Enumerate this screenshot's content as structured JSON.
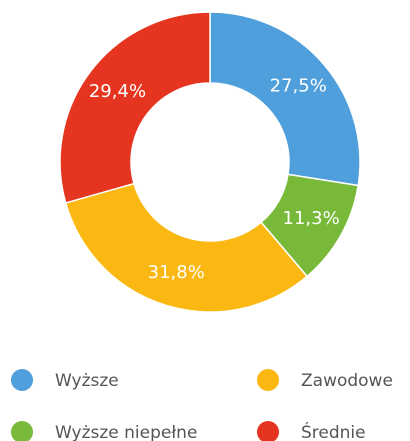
{
  "chart_data": {
    "type": "donut",
    "categories": [
      "Wyższe",
      "Wyższe niepełne",
      "Zawodowe",
      "Średnie"
    ],
    "values": [
      27.5,
      11.3,
      31.8,
      29.4
    ],
    "value_labels": [
      "27,5%",
      "11,3%",
      "31,8%",
      "29,4%"
    ],
    "colors": [
      "#4e9fdb",
      "#79b93a",
      "#fbb812",
      "#e5341f"
    ]
  }
}
